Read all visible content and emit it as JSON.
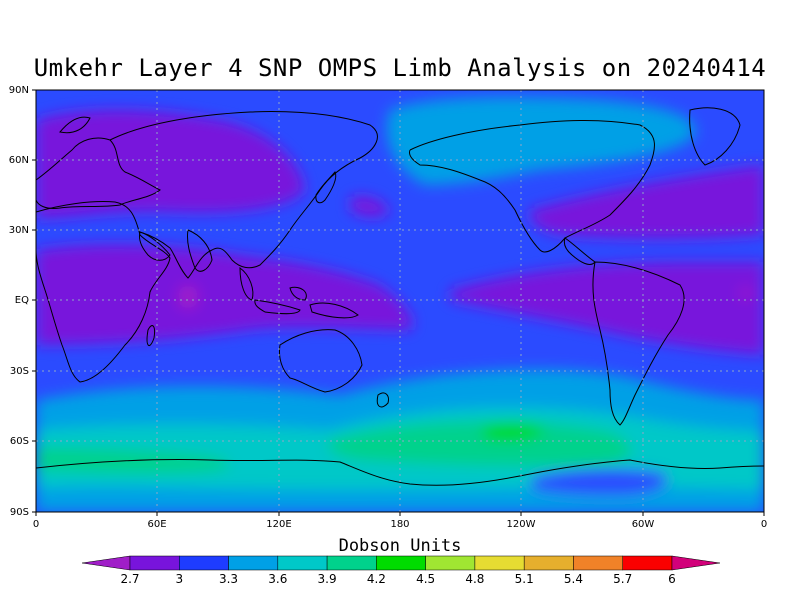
{
  "title": "Umkehr Layer 4 SNP OMPS Limb Analysis on 20240414",
  "map": {
    "lat_labels": [
      "90N",
      "60N",
      "30N",
      "EQ",
      "30S",
      "60S",
      "90S"
    ],
    "lon_labels": [
      "0",
      "60E",
      "120E",
      "180",
      "120W",
      "60W",
      "0"
    ],
    "ocean_color": "#2b4bff",
    "coast_color": "#000000"
  },
  "legend": {
    "title": "Dobson Units",
    "ticks": [
      "2.7",
      "3",
      "3.3",
      "3.6",
      "3.9",
      "4.2",
      "4.5",
      "4.8",
      "5.1",
      "5.4",
      "5.7",
      "6"
    ],
    "colors": [
      "#a01ec8",
      "#7814dc",
      "#1e3cff",
      "#00a0e6",
      "#00c8c8",
      "#00d28c",
      "#00dc00",
      "#a0e632",
      "#e6dc32",
      "#e6af2d",
      "#f08228",
      "#fa0000",
      "#d2007a"
    ]
  }
}
